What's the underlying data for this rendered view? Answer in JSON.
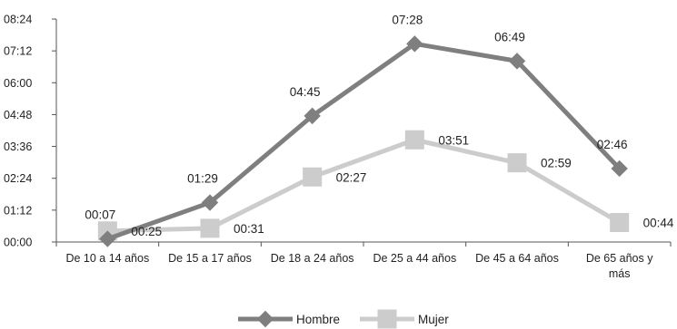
{
  "chart_data": {
    "type": "line",
    "categories": [
      [
        "De 10 a 14 años"
      ],
      [
        "De 15 a 17 años"
      ],
      [
        "De 18 a 24 años"
      ],
      [
        "De 25 a 44 años"
      ],
      [
        "De 45 a 64 años"
      ],
      [
        "De 65 años y",
        "más"
      ]
    ],
    "y_unit": "minutes (hh:mm)",
    "ylim": [
      0,
      504
    ],
    "y_ticks": [
      "00:00",
      "01:12",
      "02:24",
      "03:36",
      "04:48",
      "06:00",
      "07:12",
      "08:24"
    ],
    "grid": false,
    "legend_position": "bottom",
    "series": [
      {
        "name": "Hombre",
        "color": "#7f7f7f",
        "marker": "diamond",
        "values": [
          7,
          89,
          285,
          448,
          409,
          166
        ],
        "labels": [
          "00:07",
          "01:29",
          "04:45",
          "07:28",
          "06:49",
          "02:46"
        ]
      },
      {
        "name": "Mujer",
        "color": "#cccccc",
        "marker": "square",
        "values": [
          25,
          31,
          147,
          231,
          179,
          44
        ],
        "labels": [
          "00:25",
          "00:31",
          "02:27",
          "03:51",
          "02:59",
          "00:44"
        ]
      }
    ]
  }
}
